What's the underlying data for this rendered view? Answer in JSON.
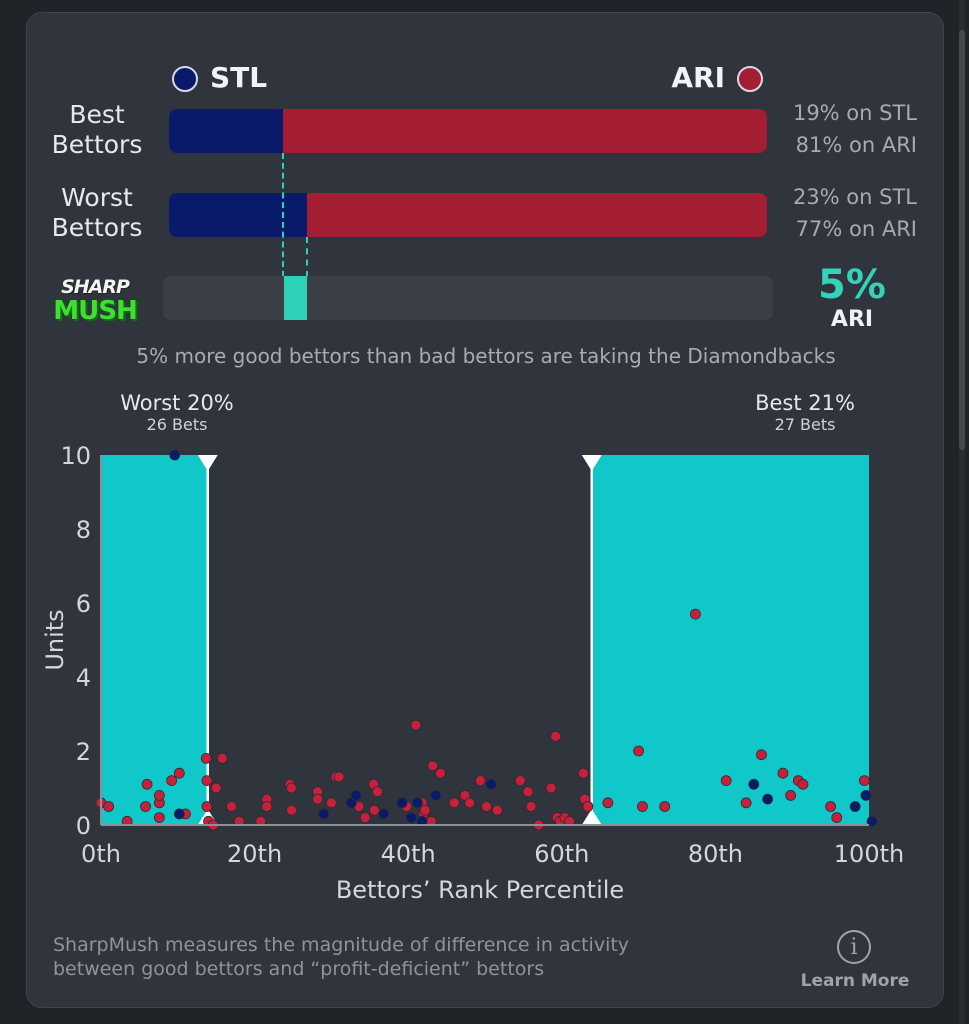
{
  "teams": {
    "away": {
      "abbr": "STL",
      "color": "#0a1a6b"
    },
    "home": {
      "abbr": "ARI",
      "color": "#a31d33"
    }
  },
  "rows": [
    {
      "label_line1": "Best",
      "label_line2": "Bettors",
      "stl_pct": 19,
      "ari_pct": 81,
      "stl_text": "19% on STL",
      "ari_text": "81% on ARI"
    },
    {
      "label_line1": "Worst",
      "label_line2": "Bettors",
      "stl_pct": 23,
      "ari_pct": 77,
      "stl_text": "23% on STL",
      "ari_text": "77% on ARI"
    }
  ],
  "sharpmush": {
    "logo_top": "SHARP",
    "logo_bottom": "MUSH",
    "value_text": "5%",
    "team": "ARI",
    "value": 5,
    "caption": "5% more good bettors than bad bettors are taking the Diamondbacks",
    "accent": "#2ed1b7"
  },
  "zones": {
    "worst": {
      "title": "Worst 20%",
      "sub": "26 Bets"
    },
    "best": {
      "title": "Best 21%",
      "sub": "27 Bets"
    }
  },
  "chart_data": {
    "type": "scatter",
    "xlabel": "Bettors’ Rank Percentile",
    "ylabel": "Units",
    "xlim": [
      0,
      100
    ],
    "ylim": [
      0,
      10
    ],
    "x_ticks": [
      {
        "value": 0,
        "label": "0th"
      },
      {
        "value": 20,
        "label": "20th"
      },
      {
        "value": 40,
        "label": "40th"
      },
      {
        "value": 60,
        "label": "60th"
      },
      {
        "value": 80,
        "label": "80th"
      },
      {
        "value": 100,
        "label": "100th"
      }
    ],
    "y_ticks": [
      0,
      2,
      4,
      6,
      8,
      10
    ],
    "shaded_ranges": [
      {
        "name": "worst",
        "from": 0,
        "to": 13.9
      },
      {
        "name": "best",
        "from": 63.9,
        "to": 100
      }
    ],
    "series": [
      {
        "name": "ARI",
        "color": "#c8203a",
        "points": [
          [
            0,
            0.6
          ],
          [
            1,
            0.5
          ],
          [
            3.4,
            0.1
          ],
          [
            5.8,
            0.5
          ],
          [
            6,
            1.1
          ],
          [
            7.6,
            0.6
          ],
          [
            7.6,
            0.8
          ],
          [
            7.6,
            0.2
          ],
          [
            9.2,
            1.2
          ],
          [
            10.2,
            1.4
          ],
          [
            11,
            0.3
          ],
          [
            13.7,
            1.8
          ],
          [
            13.8,
            1.2
          ],
          [
            13.8,
            0.5
          ],
          [
            14,
            0.1
          ],
          [
            14.6,
            0
          ],
          [
            15,
            1
          ],
          [
            15.8,
            1.8
          ],
          [
            17,
            0.5
          ],
          [
            18,
            0.1
          ],
          [
            20.8,
            0.1
          ],
          [
            21.6,
            0.7
          ],
          [
            21.6,
            0.5
          ],
          [
            24.6,
            1.1
          ],
          [
            24.8,
            0.4
          ],
          [
            24.8,
            1
          ],
          [
            28.2,
            0.9
          ],
          [
            28.2,
            0.7
          ],
          [
            30,
            0.6
          ],
          [
            30.6,
            1.3
          ],
          [
            31,
            1.3
          ],
          [
            33.6,
            0.5
          ],
          [
            34.4,
            0.2
          ],
          [
            35.5,
            1.1
          ],
          [
            35.6,
            0.4
          ],
          [
            36,
            0.9
          ],
          [
            39.8,
            0.5
          ],
          [
            41,
            2.7
          ],
          [
            41.8,
            0.6
          ],
          [
            42,
            0.3
          ],
          [
            42.2,
            0.4
          ],
          [
            43,
            0.1
          ],
          [
            43.2,
            1.6
          ],
          [
            44.2,
            1.4
          ],
          [
            46,
            0.6
          ],
          [
            47.4,
            0.8
          ],
          [
            48,
            0.6
          ],
          [
            49.4,
            1.2
          ],
          [
            50.2,
            0.5
          ],
          [
            51.6,
            0.4
          ],
          [
            54.6,
            1.2
          ],
          [
            55.6,
            0.9
          ],
          [
            56,
            0.5
          ],
          [
            57,
            0
          ],
          [
            58.6,
            1
          ],
          [
            59.2,
            2.4
          ],
          [
            59.4,
            0.2
          ],
          [
            59.8,
            0.1
          ],
          [
            60.4,
            0.2
          ],
          [
            61,
            0.1
          ],
          [
            62.8,
            1.4
          ],
          [
            63,
            0.7
          ],
          [
            63.4,
            0.5
          ],
          [
            66,
            0.6
          ],
          [
            70,
            2
          ],
          [
            70.5,
            0.5
          ],
          [
            73.4,
            0.5
          ],
          [
            77.4,
            5.7
          ],
          [
            81.4,
            1.2
          ],
          [
            84,
            0.6
          ],
          [
            86,
            1.9
          ],
          [
            88.8,
            1.4
          ],
          [
            89.8,
            0.8
          ],
          [
            90.8,
            1.2
          ],
          [
            91.4,
            1.1
          ],
          [
            95,
            0.5
          ],
          [
            95.8,
            0.2
          ],
          [
            99.4,
            1.2
          ]
        ]
      },
      {
        "name": "STL",
        "color": "#0a1a6b",
        "points": [
          [
            9.6,
            10
          ],
          [
            10.2,
            0.3
          ],
          [
            29,
            0.3
          ],
          [
            32.6,
            0.6
          ],
          [
            33.2,
            0.8
          ],
          [
            36.8,
            0.3
          ],
          [
            39.2,
            0.6
          ],
          [
            40.4,
            0.2
          ],
          [
            41.2,
            0.6
          ],
          [
            41.8,
            0.1
          ],
          [
            43.6,
            0.8
          ],
          [
            50.8,
            1.1
          ],
          [
            85,
            1.1
          ],
          [
            86.8,
            0.7
          ],
          [
            98.2,
            0.5
          ],
          [
            99.6,
            0.8
          ],
          [
            100.4,
            0.1
          ]
        ]
      }
    ]
  },
  "footer": {
    "line1": "SharpMush measures the magnitude of difference in activity",
    "line2": "between good bettors and “profit-deficient” bettors",
    "learn_more": "Learn More",
    "info_glyph": "i"
  }
}
